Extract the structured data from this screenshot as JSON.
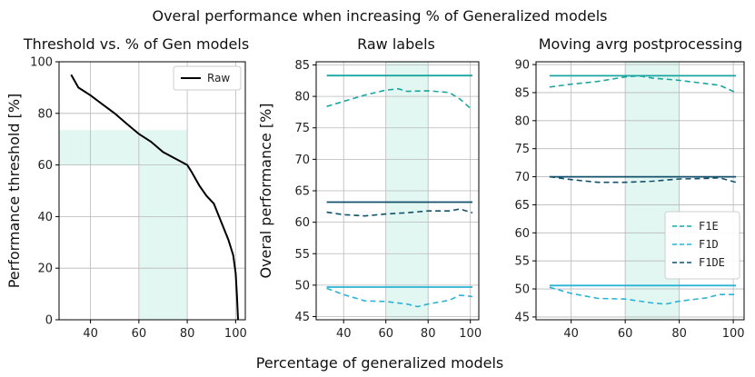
{
  "suptitle": "Overal performance when increasing % of Generalized models",
  "xlabel_shared": "Percentage of generalized models",
  "colors": {
    "raw": "#000000",
    "f1e": "#1aa6a0",
    "f1d": "#2bb3d6",
    "f1de": "#12506b",
    "band": "#d8f4ec",
    "grid": "#b8b8b8"
  },
  "chart_data": [
    {
      "type": "line",
      "title": "Threshold vs. % of Gen models",
      "ylabel": "Performance threshold [%]",
      "xlim": [
        27,
        104
      ],
      "ylim": [
        0,
        100
      ],
      "xticks": [
        40,
        60,
        80,
        100
      ],
      "yticks": [
        0,
        20,
        40,
        60,
        80,
        100
      ],
      "highlight_x": [
        60,
        80
      ],
      "highlight_y": [
        0,
        73.5
      ],
      "legend_position": "top-right",
      "series": [
        {
          "name": "Raw",
          "style": "solid",
          "color": "#000000",
          "x": [
            32,
            35,
            40,
            45,
            50,
            55,
            60,
            65,
            70,
            75,
            80,
            82,
            85,
            88,
            91,
            94,
            97,
            99,
            100,
            100.5,
            101
          ],
          "y": [
            95,
            90,
            87,
            83.5,
            80,
            76,
            72,
            69,
            65,
            62.5,
            60,
            57,
            52,
            48,
            45,
            38,
            31,
            25,
            18,
            10,
            0
          ]
        }
      ]
    },
    {
      "type": "line",
      "title": "Raw labels",
      "ylabel": "Overal performance [%]",
      "xlim": [
        27,
        104
      ],
      "ylim": [
        44.5,
        85.5
      ],
      "xticks": [
        40,
        60,
        80,
        100
      ],
      "yticks": [
        45,
        50,
        55,
        60,
        65,
        70,
        75,
        80,
        85
      ],
      "highlight_x": [
        60,
        80
      ],
      "series": [
        {
          "name": "",
          "style": "solid",
          "color": "#1aa6a0",
          "x": [
            32,
            101
          ],
          "y": [
            83.3,
            83.3
          ]
        },
        {
          "name": "",
          "style": "solid",
          "color": "#12506b",
          "x": [
            32,
            101
          ],
          "y": [
            63.2,
            63.2
          ]
        },
        {
          "name": "",
          "style": "solid",
          "color": "#2bb3d6",
          "x": [
            32,
            101
          ],
          "y": [
            49.7,
            49.7
          ]
        },
        {
          "name": "F1E",
          "style": "dashed",
          "color": "#1aa6a0",
          "x": [
            32,
            40,
            50,
            60,
            66,
            70,
            80,
            90,
            95,
            101
          ],
          "y": [
            78.4,
            79.2,
            80.2,
            81.0,
            81.2,
            80.8,
            80.9,
            80.6,
            79.6,
            77.8
          ]
        },
        {
          "name": "F1DE",
          "style": "dashed",
          "color": "#12506b",
          "x": [
            32,
            40,
            50,
            60,
            70,
            80,
            90,
            95,
            101
          ],
          "y": [
            61.6,
            61.2,
            61.0,
            61.3,
            61.5,
            61.8,
            61.8,
            62.1,
            61.5
          ]
        },
        {
          "name": "F1D",
          "style": "dashed",
          "color": "#2bb3d6",
          "x": [
            32,
            40,
            50,
            60,
            70,
            75,
            80,
            90,
            95,
            101
          ],
          "y": [
            49.5,
            48.5,
            47.5,
            47.4,
            47.0,
            46.6,
            47.0,
            47.6,
            48.4,
            48.2
          ]
        }
      ]
    },
    {
      "type": "line",
      "title": "Moving avrg postprocessing",
      "ylabel": "",
      "xlim": [
        27,
        104
      ],
      "ylim": [
        44.5,
        90.5
      ],
      "xticks": [
        40,
        60,
        80,
        100
      ],
      "yticks": [
        45,
        50,
        55,
        60,
        65,
        70,
        75,
        80,
        85,
        90
      ],
      "highlight_x": [
        60,
        80
      ],
      "legend_position": "lower-right",
      "series": [
        {
          "name": "",
          "style": "solid",
          "color": "#1aa6a0",
          "x": [
            32,
            101
          ],
          "y": [
            88.0,
            88.0
          ]
        },
        {
          "name": "",
          "style": "solid",
          "color": "#12506b",
          "x": [
            32,
            101
          ],
          "y": [
            70.0,
            70.0
          ]
        },
        {
          "name": "",
          "style": "solid",
          "color": "#2bb3d6",
          "x": [
            32,
            101
          ],
          "y": [
            50.6,
            50.6
          ]
        },
        {
          "name": "F1E",
          "style": "dashed",
          "color": "#1aa6a0",
          "x": [
            32,
            40,
            50,
            60,
            65,
            70,
            80,
            90,
            95,
            101
          ],
          "y": [
            86.0,
            86.5,
            87.0,
            87.8,
            88.0,
            87.6,
            87.2,
            86.6,
            86.3,
            85.0
          ]
        },
        {
          "name": "F1D",
          "style": "dashed",
          "color": "#2bb3d6",
          "x": [
            32,
            40,
            50,
            60,
            70,
            75,
            80,
            90,
            95,
            101
          ],
          "y": [
            50.3,
            49.2,
            48.3,
            48.2,
            47.5,
            47.3,
            47.8,
            48.4,
            49.0,
            49.0
          ]
        },
        {
          "name": "F1DE",
          "style": "dashed",
          "color": "#12506b",
          "x": [
            32,
            40,
            50,
            60,
            70,
            80,
            90,
            95,
            101
          ],
          "y": [
            70.0,
            69.5,
            69.0,
            69.0,
            69.2,
            69.6,
            69.7,
            69.8,
            69.0
          ]
        }
      ]
    }
  ]
}
